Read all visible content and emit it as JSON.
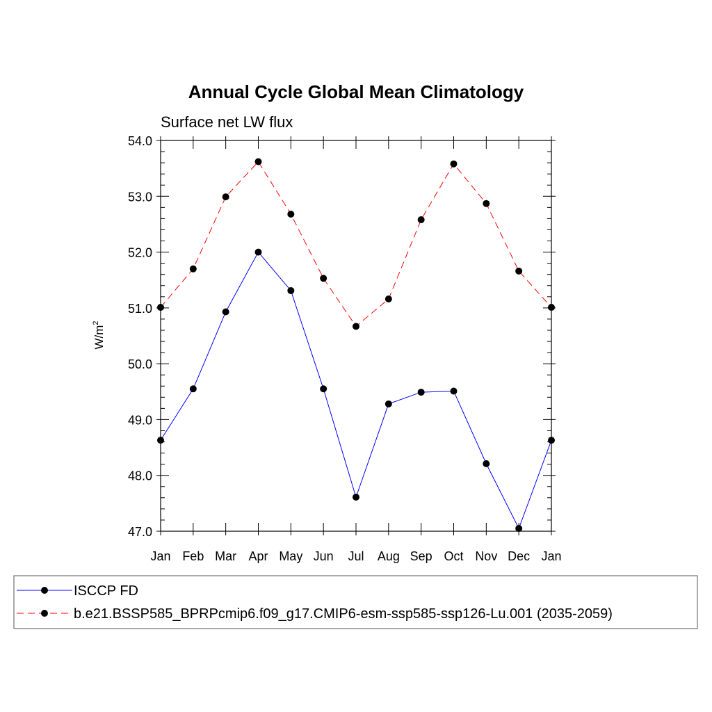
{
  "chart_data": {
    "type": "line",
    "title": "Annual Cycle Global Mean Climatology",
    "subtitle": "Surface net LW flux",
    "ylabel_base": "W/m",
    "ylabel_sup": "2",
    "categories": [
      "Jan",
      "Feb",
      "Mar",
      "Apr",
      "May",
      "Jun",
      "Jul",
      "Aug",
      "Sep",
      "Oct",
      "Nov",
      "Dec",
      "Jan"
    ],
    "ylim": [
      47.0,
      54.0
    ],
    "yticks": [
      "47.0",
      "48.0",
      "49.0",
      "50.0",
      "51.0",
      "52.0",
      "53.0",
      "54.0"
    ],
    "grid": false,
    "legend_position": "bottom",
    "series": [
      {
        "name": "ISCCP FD",
        "color": "#0000ff",
        "dash": "solid",
        "values": [
          48.63,
          49.55,
          50.93,
          52.0,
          51.31,
          49.55,
          47.61,
          49.28,
          49.49,
          49.51,
          48.21,
          47.05,
          48.63
        ]
      },
      {
        "name": "b.e21.BSSP585_BPRPcmip6.f09_g17.CMIP6-esm-ssp585-ssp126-Lu.001 (2035-2059)",
        "color": "#ff0000",
        "dash": "dashed",
        "values": [
          51.01,
          51.7,
          52.99,
          53.62,
          52.68,
          51.53,
          50.67,
          51.16,
          52.58,
          53.58,
          52.87,
          51.66,
          51.01
        ]
      }
    ]
  }
}
